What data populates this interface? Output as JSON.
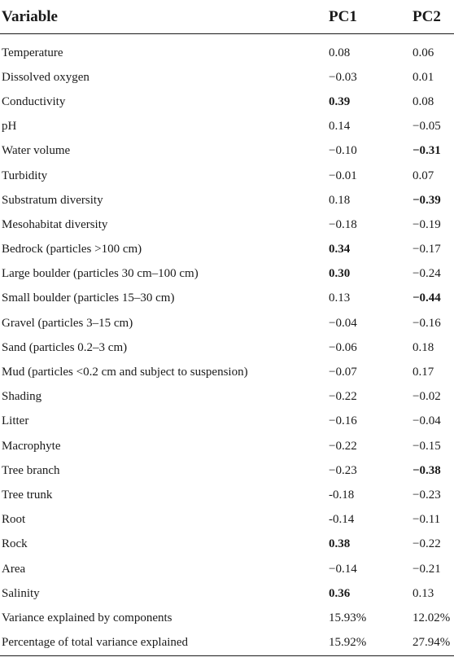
{
  "header": {
    "variable": "Variable",
    "pc1": "PC1",
    "pc2": "PC2"
  },
  "rows": [
    {
      "variable": "Temperature",
      "pc1": "0.08",
      "pc2": "0.06",
      "pc1_bold": false,
      "pc2_bold": false
    },
    {
      "variable": "Dissolved oxygen",
      "pc1": "−0.03",
      "pc2": "0.01",
      "pc1_bold": false,
      "pc2_bold": false
    },
    {
      "variable": "Conductivity",
      "pc1": "0.39",
      "pc2": "0.08",
      "pc1_bold": true,
      "pc2_bold": false
    },
    {
      "variable": "pH",
      "pc1": "0.14",
      "pc2": "−0.05",
      "pc1_bold": false,
      "pc2_bold": false
    },
    {
      "variable": "Water volume",
      "pc1": "−0.10",
      "pc2": "−0.31",
      "pc1_bold": false,
      "pc2_bold": true
    },
    {
      "variable": "Turbidity",
      "pc1": "−0.01",
      "pc2": "0.07",
      "pc1_bold": false,
      "pc2_bold": false
    },
    {
      "variable": "Substratum diversity",
      "pc1": "0.18",
      "pc2": "−0.39",
      "pc1_bold": false,
      "pc2_bold": true
    },
    {
      "variable": "Mesohabitat diversity",
      "pc1": "−0.18",
      "pc2": "−0.19",
      "pc1_bold": false,
      "pc2_bold": false
    },
    {
      "variable": "Bedrock (particles >100 cm)",
      "pc1": "0.34",
      "pc2": "−0.17",
      "pc1_bold": true,
      "pc2_bold": false
    },
    {
      "variable": "Large boulder (particles 30 cm–100 cm)",
      "pc1": "0.30",
      "pc2": "−0.24",
      "pc1_bold": true,
      "pc2_bold": false
    },
    {
      "variable": "Small boulder (particles 15–30 cm)",
      "pc1": "0.13",
      "pc2": "−0.44",
      "pc1_bold": false,
      "pc2_bold": true
    },
    {
      "variable": "Gravel (particles 3–15 cm)",
      "pc1": "−0.04",
      "pc2": "−0.16",
      "pc1_bold": false,
      "pc2_bold": false
    },
    {
      "variable": "Sand (particles 0.2–3 cm)",
      "pc1": "−0.06",
      "pc2": "0.18",
      "pc1_bold": false,
      "pc2_bold": false
    },
    {
      "variable": "Mud (particles <0.2 cm and subject to suspension)",
      "pc1": "−0.07",
      "pc2": "0.17",
      "pc1_bold": false,
      "pc2_bold": false
    },
    {
      "variable": "Shading",
      "pc1": "−0.22",
      "pc2": "−0.02",
      "pc1_bold": false,
      "pc2_bold": false
    },
    {
      "variable": "Litter",
      "pc1": "−0.16",
      "pc2": "−0.04",
      "pc1_bold": false,
      "pc2_bold": false
    },
    {
      "variable": "Macrophyte",
      "pc1": "−0.22",
      "pc2": "−0.15",
      "pc1_bold": false,
      "pc2_bold": false
    },
    {
      "variable": "Tree branch",
      "pc1": "−0.23",
      "pc2": "−0.38",
      "pc1_bold": false,
      "pc2_bold": true
    },
    {
      "variable": "Tree trunk",
      "pc1": "-0.18",
      "pc2": "−0.23",
      "pc1_bold": false,
      "pc2_bold": false
    },
    {
      "variable": "Root",
      "pc1": "-0.14",
      "pc2": "−0.11",
      "pc1_bold": false,
      "pc2_bold": false
    },
    {
      "variable": "Rock",
      "pc1": "0.38",
      "pc2": "−0.22",
      "pc1_bold": true,
      "pc2_bold": false
    },
    {
      "variable": "Area",
      "pc1": "−0.14",
      "pc2": "−0.21",
      "pc1_bold": false,
      "pc2_bold": false
    },
    {
      "variable": "Salinity",
      "pc1": "0.36",
      "pc2": "0.13",
      "pc1_bold": true,
      "pc2_bold": false
    },
    {
      "variable": "Variance explained by components",
      "pc1": "15.93%",
      "pc2": "12.02%",
      "pc1_bold": false,
      "pc2_bold": false
    },
    {
      "variable": "Percentage of total variance explained",
      "pc1": "15.92%",
      "pc2": "27.94%",
      "pc1_bold": false,
      "pc2_bold": false
    }
  ]
}
